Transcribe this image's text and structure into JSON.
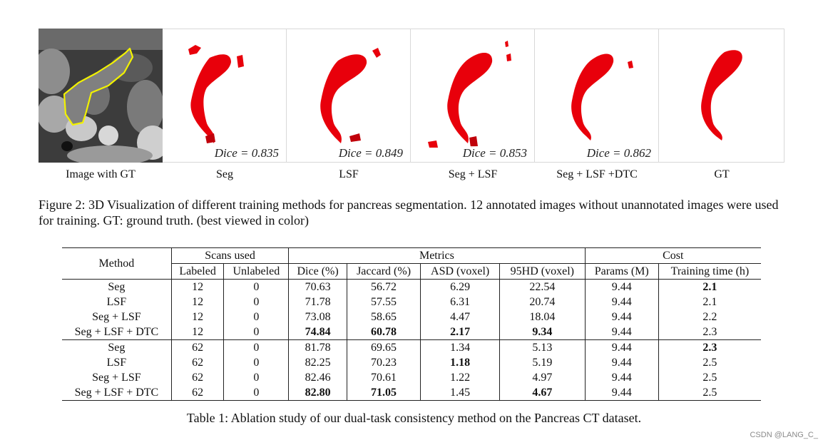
{
  "figure": {
    "panels": [
      {
        "label": "Image with GT",
        "dice": ""
      },
      {
        "label": "Seg",
        "dice": "Dice = 0.835"
      },
      {
        "label": "LSF",
        "dice": "Dice = 0.849"
      },
      {
        "label": "Seg + LSF",
        "dice": "Dice = 0.853"
      },
      {
        "label": "Seg + LSF +DTC",
        "dice": "Dice = 0.862"
      },
      {
        "label": "GT",
        "dice": ""
      }
    ],
    "caption": "Figure 2: 3D Visualization of different training methods for pancreas segmentation. 12 annotated images without unannotated images were used for training. GT: ground truth. (best viewed in color)",
    "colors": {
      "segmentation": "#e8000b",
      "outline": "#f2f200",
      "ct_background": "#3a3a3a"
    }
  },
  "table": {
    "group_headers": {
      "method": "Method",
      "scans": "Scans used",
      "metrics": "Metrics",
      "cost": "Cost"
    },
    "columns": [
      "Labeled",
      "Unlabeled",
      "Dice (%)",
      "Jaccard (%)",
      "ASD (voxel)",
      "95HD (voxel)",
      "Params (M)",
      "Training time (h)"
    ],
    "rows": [
      {
        "method": "Seg",
        "labeled": "12",
        "unlabeled": "0",
        "dice": "70.63",
        "jaccard": "56.72",
        "asd": "6.29",
        "hd95": "22.54",
        "params": "9.44",
        "time": "2.1"
      },
      {
        "method": "LSF",
        "labeled": "12",
        "unlabeled": "0",
        "dice": "71.78",
        "jaccard": "57.55",
        "asd": "6.31",
        "hd95": "20.74",
        "params": "9.44",
        "time": "2.1"
      },
      {
        "method": "Seg + LSF",
        "labeled": "12",
        "unlabeled": "0",
        "dice": "73.08",
        "jaccard": "58.65",
        "asd": "4.47",
        "hd95": "18.04",
        "params": "9.44",
        "time": "2.2"
      },
      {
        "method": "Seg + LSF + DTC",
        "labeled": "12",
        "unlabeled": "0",
        "dice": "74.84",
        "jaccard": "60.78",
        "asd": "2.17",
        "hd95": "9.34",
        "params": "9.44",
        "time": "2.3"
      },
      {
        "method": "Seg",
        "labeled": "62",
        "unlabeled": "0",
        "dice": "81.78",
        "jaccard": "69.65",
        "asd": "1.34",
        "hd95": "5.13",
        "params": "9.44",
        "time": "2.3"
      },
      {
        "method": "LSF",
        "labeled": "62",
        "unlabeled": "0",
        "dice": "82.25",
        "jaccard": "70.23",
        "asd": "1.18",
        "hd95": "5.19",
        "params": "9.44",
        "time": "2.5"
      },
      {
        "method": "Seg + LSF",
        "labeled": "62",
        "unlabeled": "0",
        "dice": "82.46",
        "jaccard": "70.61",
        "asd": "1.22",
        "hd95": "4.97",
        "params": "9.44",
        "time": "2.5"
      },
      {
        "method": "Seg + LSF + DTC",
        "labeled": "62",
        "unlabeled": "0",
        "dice": "82.80",
        "jaccard": "71.05",
        "asd": "1.45",
        "hd95": "4.67",
        "params": "9.44",
        "time": "2.5"
      }
    ],
    "bold_cells": [
      [
        0,
        "time"
      ],
      [
        3,
        "dice"
      ],
      [
        3,
        "jaccard"
      ],
      [
        3,
        "asd"
      ],
      [
        3,
        "hd95"
      ],
      [
        4,
        "time"
      ],
      [
        5,
        "asd"
      ],
      [
        7,
        "dice"
      ],
      [
        7,
        "jaccard"
      ],
      [
        7,
        "hd95"
      ]
    ],
    "caption": "Table 1: Ablation study of our dual-task consistency method on the Pancreas CT dataset."
  },
  "watermark": "CSDN @LANG_C_"
}
